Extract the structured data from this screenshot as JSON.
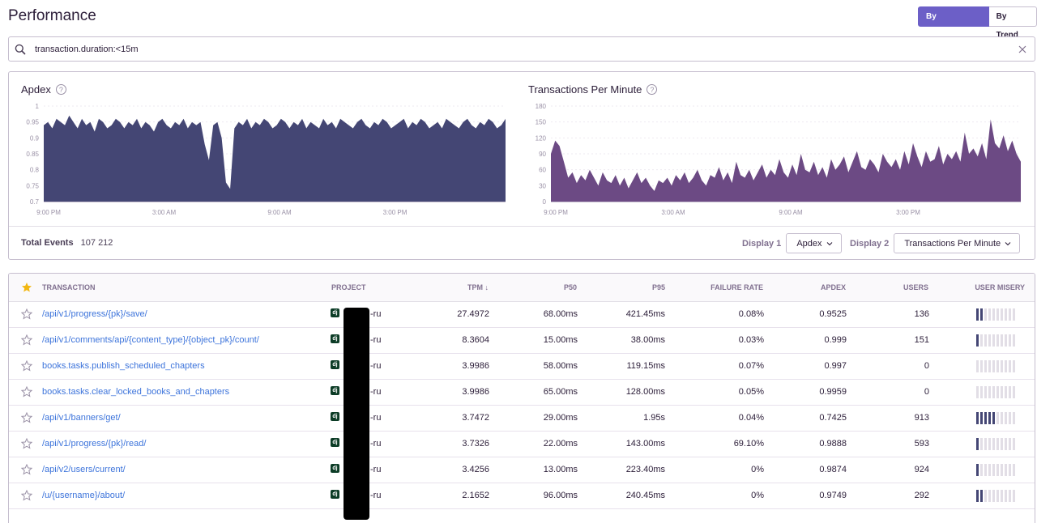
{
  "header": {
    "title": "Performance",
    "views": [
      "By Transaction",
      "By Trend"
    ]
  },
  "search": {
    "query": "transaction.duration:<15m"
  },
  "charts": {
    "apdex_title": "Apdex",
    "tpm_title": "Transactions Per Minute",
    "help_glyph": "?"
  },
  "chart_data": [
    {
      "type": "area",
      "title": "Apdex",
      "x_ticks": [
        "9:00 PM",
        "3:00 AM",
        "9:00 AM",
        "3:00 PM"
      ],
      "y_ticks": [
        "1",
        "0.95",
        "0.9",
        "0.85",
        "0.8",
        "0.75",
        "0.7"
      ],
      "ylim": [
        0.7,
        1
      ],
      "color": "#444674",
      "values": [
        0.94,
        0.95,
        0.93,
        0.96,
        0.95,
        0.94,
        0.97,
        0.95,
        0.93,
        0.96,
        0.94,
        0.95,
        0.92,
        0.96,
        0.95,
        0.93,
        0.94,
        0.96,
        0.95,
        0.93,
        0.95,
        0.94,
        0.96,
        0.93,
        0.95,
        0.94,
        0.92,
        0.95,
        0.96,
        0.94,
        0.93,
        0.95,
        0.94,
        0.96,
        0.93,
        0.95,
        0.94,
        0.95,
        0.88,
        0.83,
        0.94,
        0.95,
        0.9,
        0.76,
        0.74,
        0.93,
        0.95,
        0.94,
        0.96,
        0.93,
        0.95,
        0.94,
        0.96,
        0.95,
        0.93,
        0.94,
        0.96,
        0.95,
        0.93,
        0.95,
        0.94,
        0.96,
        0.93,
        0.95,
        0.94,
        0.93,
        0.96,
        0.94,
        0.95,
        0.93,
        0.96,
        0.95,
        0.94,
        0.93,
        0.95,
        0.96,
        0.94,
        0.93,
        0.95,
        0.94,
        0.96,
        0.95,
        0.93,
        0.94,
        0.95,
        0.96,
        0.93,
        0.95,
        0.94,
        0.96,
        0.95,
        0.93,
        0.94,
        0.95,
        0.93,
        0.96,
        0.95,
        0.94,
        0.93,
        0.95,
        0.96,
        0.94,
        0.93,
        0.95,
        0.94,
        0.96,
        0.95,
        0.93,
        0.94,
        0.96
      ]
    },
    {
      "type": "area",
      "title": "Transactions Per Minute",
      "x_ticks": [
        "9:00 PM",
        "3:00 AM",
        "9:00 AM",
        "3:00 PM"
      ],
      "y_ticks": [
        "180",
        "150",
        "120",
        "90",
        "60",
        "30",
        "0"
      ],
      "ylim": [
        0,
        180
      ],
      "color": "#6c4a84",
      "values": [
        90,
        115,
        105,
        75,
        45,
        55,
        35,
        50,
        40,
        60,
        45,
        30,
        55,
        40,
        35,
        50,
        30,
        45,
        25,
        40,
        55,
        35,
        45,
        30,
        20,
        40,
        35,
        45,
        30,
        50,
        40,
        55,
        35,
        45,
        60,
        40,
        30,
        50,
        45,
        65,
        40,
        55,
        35,
        75,
        50,
        45,
        60,
        40,
        55,
        70,
        45,
        60,
        50,
        80,
        55,
        45,
        70,
        50,
        90,
        60,
        55,
        75,
        50,
        65,
        45,
        80,
        60,
        70,
        85,
        55,
        75,
        95,
        65,
        60,
        80,
        70,
        55,
        90,
        75,
        65,
        80,
        60,
        95,
        70,
        110,
        85,
        65,
        95,
        75,
        80,
        105,
        70,
        90,
        80,
        95,
        75,
        130,
        90,
        100,
        85,
        110,
        80,
        155,
        110,
        100,
        125,
        95,
        115,
        90,
        75
      ]
    }
  ],
  "footer": {
    "total_label": "Total Events",
    "total_value": "107 212",
    "display1_label": "Display 1",
    "display1_value": "Apdex",
    "display2_label": "Display 2",
    "display2_value": "Transactions Per Minute"
  },
  "table": {
    "columns": [
      "TRANSACTION",
      "PROJECT",
      "TPM",
      "P50",
      "P95",
      "FAILURE RATE",
      "APDEX",
      "USERS",
      "USER MISERY"
    ],
    "sort_glyph": "↓",
    "badge": "dj",
    "rows": [
      {
        "transaction": "/api/v1/progress/{pk}/save/",
        "project": "-ru",
        "tpm": "27.4972",
        "p50": "68.00ms",
        "p95": "421.45ms",
        "failure": "0.08%",
        "apdex": "0.9525",
        "users": "136",
        "misery": 2
      },
      {
        "transaction": "/api/v1/comments/api/{content_type}/{object_pk}/count/",
        "project": "-ru",
        "tpm": "8.3604",
        "p50": "15.00ms",
        "p95": "38.00ms",
        "failure": "0.03%",
        "apdex": "0.999",
        "users": "151",
        "misery": 1
      },
      {
        "transaction": "books.tasks.publish_scheduled_chapters",
        "project": "-ru",
        "tpm": "3.9986",
        "p50": "58.00ms",
        "p95": "119.15ms",
        "failure": "0.07%",
        "apdex": "0.997",
        "users": "0",
        "misery": 0
      },
      {
        "transaction": "books.tasks.clear_locked_books_and_chapters",
        "project": "-ru",
        "tpm": "3.9986",
        "p50": "65.00ms",
        "p95": "128.00ms",
        "failure": "0.05%",
        "apdex": "0.9959",
        "users": "0",
        "misery": 0
      },
      {
        "transaction": "/api/v1/banners/get/",
        "project": "-ru",
        "tpm": "3.7472",
        "p50": "29.00ms",
        "p95": "1.95s",
        "failure": "0.04%",
        "apdex": "0.7425",
        "users": "913",
        "misery": 5
      },
      {
        "transaction": "/api/v1/progress/{pk}/read/",
        "project": "-ru",
        "tpm": "3.7326",
        "p50": "22.00ms",
        "p95": "143.00ms",
        "failure": "69.10%",
        "apdex": "0.9888",
        "users": "593",
        "misery": 1
      },
      {
        "transaction": "/api/v2/users/current/",
        "project": "-ru",
        "tpm": "3.4256",
        "p50": "13.00ms",
        "p95": "223.40ms",
        "failure": "0%",
        "apdex": "0.9874",
        "users": "924",
        "misery": 1
      },
      {
        "transaction": "/u/{username}/about/",
        "project": "-ru",
        "tpm": "2.1652",
        "p50": "96.00ms",
        "p95": "240.45ms",
        "failure": "0%",
        "apdex": "0.9749",
        "users": "292",
        "misery": 2
      }
    ]
  }
}
